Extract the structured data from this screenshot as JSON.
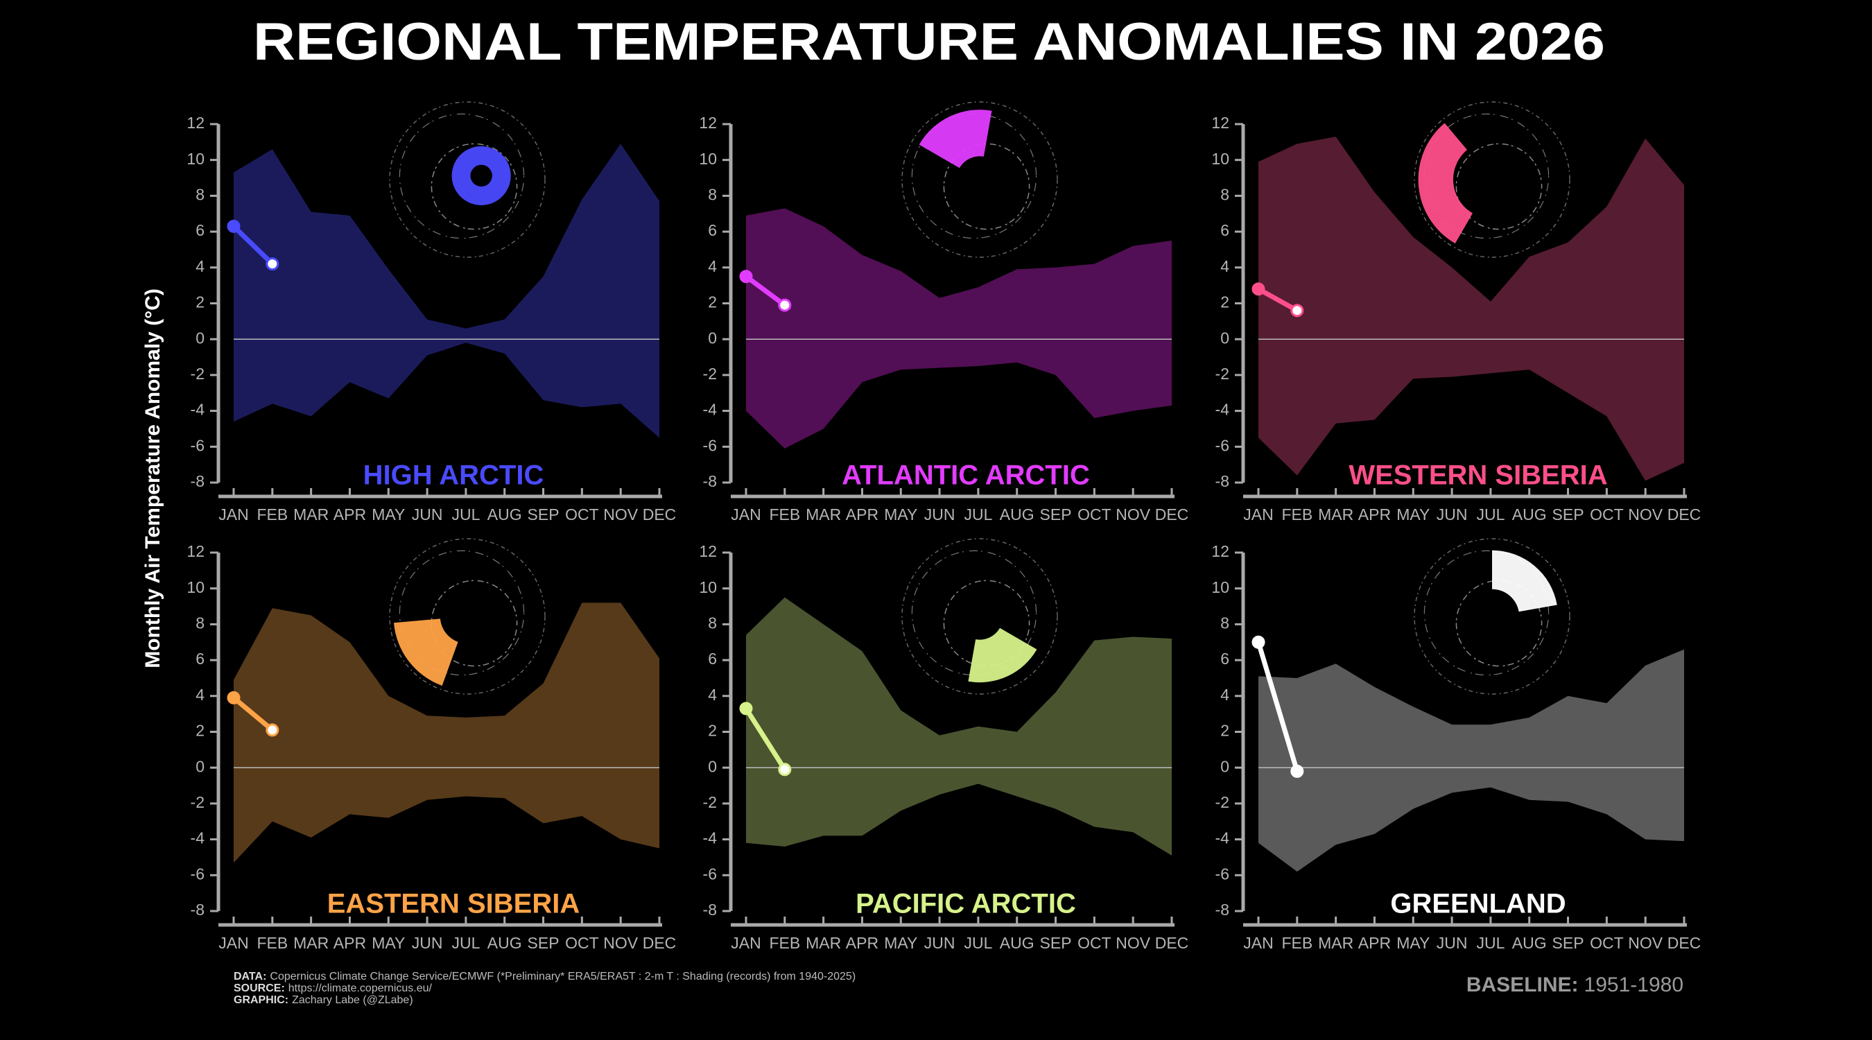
{
  "title": "REGIONAL TEMPERATURE ANOMALIES IN 2026",
  "ylabel": "Monthly Air Temperature Anomaly (°C)",
  "footer": [
    {
      "label": "DATA:",
      "text": "Copernicus Climate Change Service/ECMWF (*Preliminary* ERA5/ERA5T : 2-m T : Shading (records) from 1940-2025)"
    },
    {
      "label": "SOURCE:",
      "text": "https://climate.copernicus.eu/"
    },
    {
      "label": "GRAPHIC:",
      "text": "Zachary Labe (@ZLabe)"
    }
  ],
  "baseline": {
    "label": "BASELINE:",
    "text": "1951-1980"
  },
  "chart_data": [
    {
      "type": "range",
      "title": "HIGH ARCTIC",
      "band_color": "#1b1b5c",
      "color": "#4a4aff",
      "categories": [
        "JAN",
        "FEB",
        "MAR",
        "APR",
        "MAY",
        "JUN",
        "JUL",
        "AUG",
        "SEP",
        "OCT",
        "NOV",
        "DEC"
      ],
      "upper": [
        9.3,
        10.6,
        7.1,
        6.9,
        3.9,
        1.1,
        0.6,
        1.1,
        3.5,
        7.8,
        10.9,
        7.7
      ],
      "lower": [
        -4.6,
        -3.6,
        -4.3,
        -2.4,
        -3.3,
        -0.9,
        -0.2,
        -0.8,
        -3.4,
        -3.8,
        -3.6,
        -5.5
      ],
      "values": [
        6.3,
        4.2,
        null,
        null,
        null,
        null,
        null,
        null,
        null,
        null,
        null,
        null
      ],
      "ylim": [
        -8,
        12
      ],
      "yticks": [
        -8,
        -6,
        -4,
        -2,
        0,
        2,
        4,
        6,
        8,
        10,
        12
      ],
      "zero_line": true
    },
    {
      "type": "range",
      "title": "ATLANTIC ARCTIC",
      "band_color": "#520f55",
      "color": "#e23cff",
      "categories": [
        "JAN",
        "FEB",
        "MAR",
        "APR",
        "MAY",
        "JUN",
        "JUL",
        "AUG",
        "SEP",
        "OCT",
        "NOV",
        "DEC"
      ],
      "upper": [
        6.9,
        7.3,
        6.3,
        4.7,
        3.8,
        2.3,
        2.9,
        3.9,
        4.0,
        4.2,
        5.2,
        5.5
      ],
      "lower": [
        -4.0,
        -6.1,
        -5.0,
        -2.4,
        -1.7,
        -1.6,
        -1.5,
        -1.3,
        -2.0,
        -4.4,
        -4.0,
        -3.7
      ],
      "values": [
        3.5,
        1.9,
        null,
        null,
        null,
        null,
        null,
        null,
        null,
        null,
        null,
        null
      ],
      "ylim": [
        -8,
        12
      ],
      "yticks": [
        -8,
        -6,
        -4,
        -2,
        0,
        2,
        4,
        6,
        8,
        10,
        12
      ],
      "zero_line": true
    },
    {
      "type": "range",
      "title": "WESTERN SIBERIA",
      "band_color": "#561c31",
      "color": "#ff4f8b",
      "categories": [
        "JAN",
        "FEB",
        "MAR",
        "APR",
        "MAY",
        "JUN",
        "JUL",
        "AUG",
        "SEP",
        "OCT",
        "NOV",
        "DEC"
      ],
      "upper": [
        9.9,
        10.9,
        11.3,
        8.2,
        5.7,
        4.0,
        2.1,
        4.6,
        5.4,
        7.4,
        11.2,
        8.6
      ],
      "lower": [
        -5.5,
        -7.6,
        -4.7,
        -4.5,
        -2.2,
        -2.1,
        -1.9,
        -1.7,
        -3.0,
        -4.3,
        -7.9,
        -6.9
      ],
      "values": [
        2.8,
        1.6,
        null,
        null,
        null,
        null,
        null,
        null,
        null,
        null,
        null,
        null
      ],
      "ylim": [
        -8,
        12
      ],
      "yticks": [
        -8,
        -6,
        -4,
        -2,
        0,
        2,
        4,
        6,
        8,
        10,
        12
      ],
      "zero_line": true
    },
    {
      "type": "range",
      "title": "EASTERN SIBERIA",
      "band_color": "#573a1a",
      "color": "#ffa347",
      "categories": [
        "JAN",
        "FEB",
        "MAR",
        "APR",
        "MAY",
        "JUN",
        "JUL",
        "AUG",
        "SEP",
        "OCT",
        "NOV",
        "DEC"
      ],
      "upper": [
        4.9,
        8.9,
        8.5,
        7.0,
        4.0,
        2.9,
        2.8,
        2.9,
        4.7,
        9.2,
        9.2,
        6.1
      ],
      "lower": [
        -5.3,
        -3.0,
        -3.9,
        -2.6,
        -2.8,
        -1.8,
        -1.6,
        -1.7,
        -3.1,
        -2.7,
        -4.0,
        -4.5
      ],
      "values": [
        3.9,
        2.1,
        null,
        null,
        null,
        null,
        null,
        null,
        null,
        null,
        null,
        null
      ],
      "ylim": [
        -8,
        12
      ],
      "yticks": [
        -8,
        -6,
        -4,
        -2,
        0,
        2,
        4,
        6,
        8,
        10,
        12
      ],
      "zero_line": true
    },
    {
      "type": "range",
      "title": "PACIFIC ARCTIC",
      "band_color": "#4a5530",
      "color": "#d6f28a",
      "categories": [
        "JAN",
        "FEB",
        "MAR",
        "APR",
        "MAY",
        "JUN",
        "JUL",
        "AUG",
        "SEP",
        "OCT",
        "NOV",
        "DEC"
      ],
      "upper": [
        7.4,
        9.5,
        8.0,
        6.5,
        3.2,
        1.8,
        2.3,
        2.0,
        4.2,
        7.1,
        7.3,
        7.2
      ],
      "lower": [
        -4.2,
        -4.4,
        -3.8,
        -3.8,
        -2.4,
        -1.5,
        -0.9,
        -1.6,
        -2.3,
        -3.3,
        -3.6,
        -4.9
      ],
      "values": [
        3.3,
        -0.1,
        null,
        null,
        null,
        null,
        null,
        null,
        null,
        null,
        null,
        null
      ],
      "ylim": [
        -8,
        12
      ],
      "yticks": [
        -8,
        -6,
        -4,
        -2,
        0,
        2,
        4,
        6,
        8,
        10,
        12
      ],
      "zero_line": true
    },
    {
      "type": "range",
      "title": "GREENLAND",
      "band_color": "#5a5a5a",
      "color": "#ffffff",
      "categories": [
        "JAN",
        "FEB",
        "MAR",
        "APR",
        "MAY",
        "JUN",
        "JUL",
        "AUG",
        "SEP",
        "OCT",
        "NOV",
        "DEC"
      ],
      "upper": [
        5.1,
        5.0,
        5.8,
        4.5,
        3.4,
        2.4,
        2.4,
        2.8,
        4.0,
        3.6,
        5.7,
        6.6
      ],
      "lower": [
        -4.2,
        -5.8,
        -4.3,
        -3.7,
        -2.3,
        -1.4,
        -1.1,
        -1.8,
        -1.9,
        -2.6,
        -4.0,
        -4.1
      ],
      "values": [
        7.0,
        -0.2,
        null,
        null,
        null,
        null,
        null,
        null,
        null,
        null,
        null,
        null
      ],
      "ylim": [
        -8,
        12
      ],
      "yticks": [
        -8,
        -6,
        -4,
        -2,
        0,
        2,
        4,
        6,
        8,
        10,
        12
      ],
      "zero_line": true
    }
  ]
}
